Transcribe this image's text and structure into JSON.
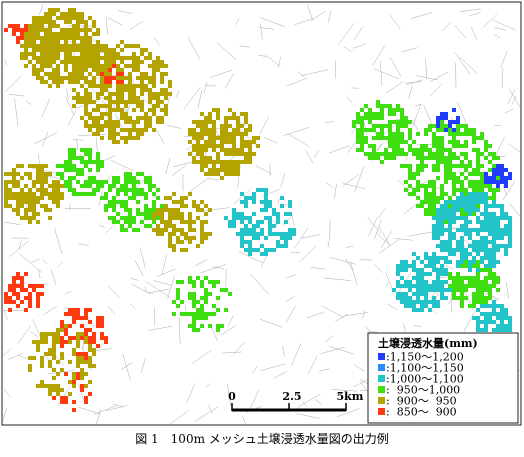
{
  "map": {
    "caption": "図 1　100m メッシュ土壌浸透水量図の出力例",
    "legend": {
      "title": "土壌浸透水量(mm)",
      "entries": [
        {
          "label": ":1,150～1,200",
          "color": "#1f3cff"
        },
        {
          "label": ":1,100～1,150",
          "color": "#2a8cff"
        },
        {
          "label": ":1,000～1,100",
          "color": "#22c4c8"
        },
        {
          "label": ":  950～1,000",
          "color": "#3ede10"
        },
        {
          "label": ":  900～  950",
          "color": "#b4a400"
        },
        {
          "label": ":  850～  900",
          "color": "#ff3a10"
        }
      ]
    },
    "scale": {
      "labels": [
        "0",
        "2.5",
        "5km"
      ]
    }
  }
}
